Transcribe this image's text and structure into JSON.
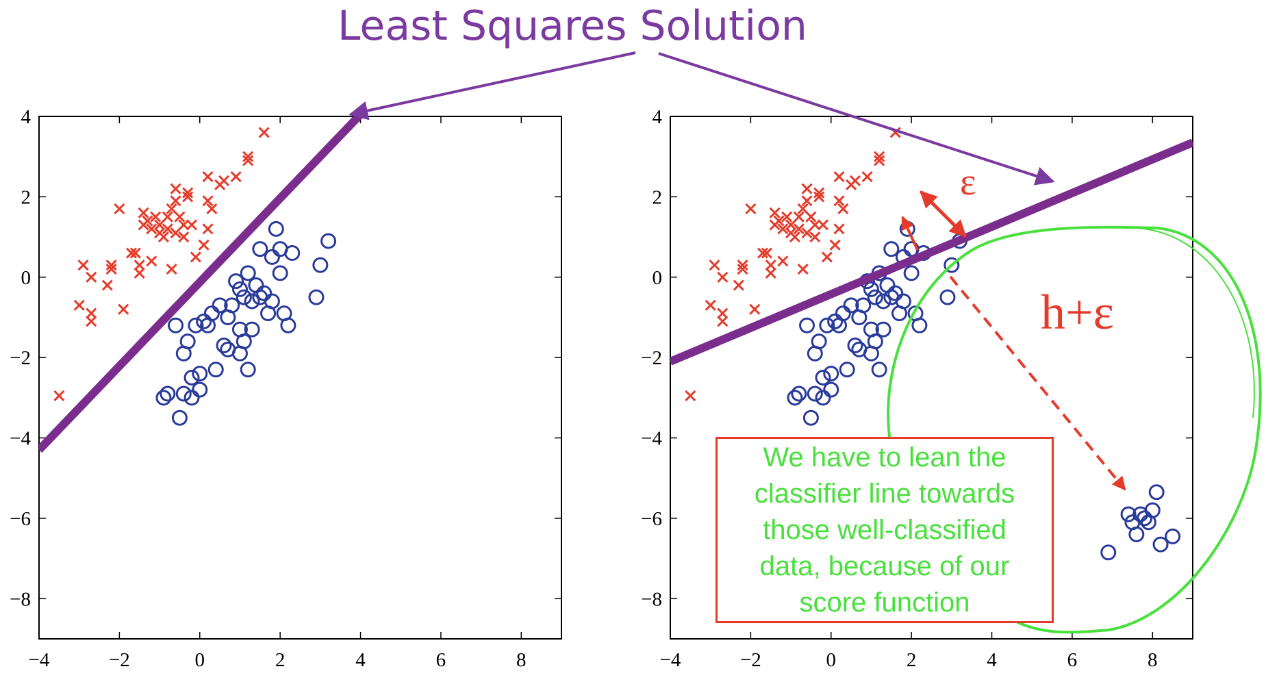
{
  "title": "Least Squares Solution",
  "colors": {
    "title": "#7a3a9f",
    "cross": "#e53b2a",
    "circle": "#2a3a9a",
    "line": "#7b2d8e",
    "green": "#49e03d",
    "red_annot": "#e53b2a"
  },
  "annotations": {
    "epsilon": "ε",
    "h_eps": "h+ε",
    "note": "We have to lean the classifier line towards those well-classified data, because of our score function"
  },
  "chart_data": [
    {
      "type": "scatter",
      "title": "",
      "xlim": [
        -4,
        9
      ],
      "ylim": [
        -9,
        4
      ],
      "xticks": [
        -4,
        -2,
        0,
        2,
        4,
        6,
        8
      ],
      "yticks": [
        4,
        2,
        0,
        -2,
        -4,
        -6,
        -8
      ],
      "xtick_labels": [
        "−4",
        "−2",
        "0",
        "2",
        "4",
        "6",
        "8"
      ],
      "ytick_labels": [
        "4",
        "2",
        "0",
        "−2",
        "−4",
        "−6",
        "−8"
      ],
      "grid": false,
      "series": [
        {
          "marker": "x",
          "color": "#e53b2a",
          "points": [
            [
              -3.5,
              -2.95
            ],
            [
              -3.0,
              -0.7
            ],
            [
              -2.9,
              0.3
            ],
            [
              -2.7,
              -0.9
            ],
            [
              -2.7,
              -1.1
            ],
            [
              -2.7,
              0.0
            ],
            [
              -2.3,
              -0.2
            ],
            [
              -2.2,
              0.3
            ],
            [
              -2.2,
              0.2
            ],
            [
              -2.0,
              1.7
            ],
            [
              -1.9,
              -0.8
            ],
            [
              -1.7,
              0.6
            ],
            [
              -1.6,
              0.6
            ],
            [
              -1.5,
              0.1
            ],
            [
              -1.5,
              0.3
            ],
            [
              -1.4,
              1.3
            ],
            [
              -1.4,
              1.6
            ],
            [
              -1.3,
              1.4
            ],
            [
              -1.2,
              0.4
            ],
            [
              -1.2,
              1.2
            ],
            [
              -1.1,
              1.5
            ],
            [
              -1.0,
              1.1
            ],
            [
              -1.0,
              1.3
            ],
            [
              -0.9,
              1.0
            ],
            [
              -0.8,
              1.2
            ],
            [
              -0.8,
              1.5
            ],
            [
              -0.7,
              0.2
            ],
            [
              -0.7,
              1.7
            ],
            [
              -0.6,
              1.9
            ],
            [
              -0.6,
              2.2
            ],
            [
              -0.6,
              1.1
            ],
            [
              -0.5,
              1.5
            ],
            [
              -0.4,
              1.0
            ],
            [
              -0.4,
              1.3
            ],
            [
              -0.3,
              2.0
            ],
            [
              -0.3,
              2.1
            ],
            [
              -0.2,
              1.3
            ],
            [
              -0.1,
              0.5
            ],
            [
              0.1,
              0.8
            ],
            [
              0.2,
              1.2
            ],
            [
              0.2,
              1.9
            ],
            [
              0.2,
              2.5
            ],
            [
              0.3,
              1.7
            ],
            [
              0.5,
              2.3
            ],
            [
              0.6,
              2.4
            ],
            [
              0.9,
              2.5
            ],
            [
              1.2,
              2.9
            ],
            [
              1.2,
              3.0
            ],
            [
              1.6,
              3.6
            ]
          ]
        },
        {
          "marker": "o",
          "color": "#2a3a9a",
          "points": [
            [
              -0.9,
              -3.0
            ],
            [
              -0.8,
              -2.9
            ],
            [
              -0.6,
              -1.2
            ],
            [
              -0.5,
              -3.5
            ],
            [
              -0.4,
              -2.9
            ],
            [
              -0.4,
              -1.9
            ],
            [
              -0.3,
              -1.6
            ],
            [
              -0.2,
              -2.5
            ],
            [
              -0.2,
              -3.0
            ],
            [
              -0.1,
              -1.2
            ],
            [
              0.0,
              -2.4
            ],
            [
              0.0,
              -2.8
            ],
            [
              0.1,
              -1.1
            ],
            [
              0.2,
              -1.2
            ],
            [
              0.3,
              -0.9
            ],
            [
              0.4,
              -2.3
            ],
            [
              0.5,
              -0.7
            ],
            [
              0.6,
              -1.7
            ],
            [
              0.7,
              -1.0
            ],
            [
              0.7,
              -1.8
            ],
            [
              0.8,
              -0.7
            ],
            [
              0.9,
              -0.1
            ],
            [
              1.0,
              -0.3
            ],
            [
              1.0,
              -1.3
            ],
            [
              1.0,
              -1.9
            ],
            [
              1.1,
              -0.5
            ],
            [
              1.1,
              -1.6
            ],
            [
              1.2,
              0.1
            ],
            [
              1.2,
              -2.3
            ],
            [
              1.3,
              -0.6
            ],
            [
              1.3,
              -1.3
            ],
            [
              1.4,
              -0.2
            ],
            [
              1.5,
              0.7
            ],
            [
              1.5,
              -0.5
            ],
            [
              1.6,
              -0.4
            ],
            [
              1.7,
              -0.9
            ],
            [
              1.8,
              -0.6
            ],
            [
              1.8,
              0.5
            ],
            [
              1.9,
              1.2
            ],
            [
              2.0,
              0.7
            ],
            [
              2.0,
              0.1
            ],
            [
              2.1,
              -0.9
            ],
            [
              2.2,
              -1.2
            ],
            [
              2.3,
              0.6
            ],
            [
              2.9,
              -0.5
            ],
            [
              3.0,
              0.3
            ],
            [
              3.2,
              0.9
            ]
          ]
        }
      ],
      "fit_line": [
        [
          -4,
          -4.3
        ],
        [
          4,
          4.05
        ]
      ]
    },
    {
      "type": "scatter",
      "title": "",
      "xlim": [
        -4,
        9
      ],
      "ylim": [
        -9,
        4
      ],
      "xticks": [
        -4,
        -2,
        0,
        2,
        4,
        6,
        8
      ],
      "yticks": [
        4,
        2,
        0,
        -2,
        -4,
        -6,
        -8
      ],
      "xtick_labels": [
        "−4",
        "−2",
        "0",
        "2",
        "4",
        "6",
        "8"
      ],
      "ytick_labels": [
        "4",
        "2",
        "0",
        "−2",
        "−4",
        "−6",
        "−8"
      ],
      "grid": false,
      "series": [
        {
          "marker": "x",
          "color": "#e53b2a",
          "points": [
            [
              -3.5,
              -2.95
            ],
            [
              -3.0,
              -0.7
            ],
            [
              -2.9,
              0.3
            ],
            [
              -2.7,
              -0.9
            ],
            [
              -2.7,
              -1.1
            ],
            [
              -2.7,
              0.0
            ],
            [
              -2.3,
              -0.2
            ],
            [
              -2.2,
              0.3
            ],
            [
              -2.2,
              0.2
            ],
            [
              -2.0,
              1.7
            ],
            [
              -1.9,
              -0.8
            ],
            [
              -1.7,
              0.6
            ],
            [
              -1.6,
              0.6
            ],
            [
              -1.5,
              0.1
            ],
            [
              -1.5,
              0.3
            ],
            [
              -1.4,
              1.3
            ],
            [
              -1.4,
              1.6
            ],
            [
              -1.3,
              1.4
            ],
            [
              -1.2,
              0.4
            ],
            [
              -1.2,
              1.2
            ],
            [
              -1.1,
              1.5
            ],
            [
              -1.0,
              1.1
            ],
            [
              -1.0,
              1.3
            ],
            [
              -0.9,
              1.0
            ],
            [
              -0.8,
              1.2
            ],
            [
              -0.8,
              1.5
            ],
            [
              -0.7,
              0.2
            ],
            [
              -0.7,
              1.7
            ],
            [
              -0.6,
              1.9
            ],
            [
              -0.6,
              2.2
            ],
            [
              -0.6,
              1.1
            ],
            [
              -0.5,
              1.5
            ],
            [
              -0.4,
              1.0
            ],
            [
              -0.4,
              1.3
            ],
            [
              -0.3,
              2.0
            ],
            [
              -0.3,
              2.1
            ],
            [
              -0.2,
              1.3
            ],
            [
              -0.1,
              0.5
            ],
            [
              0.1,
              0.8
            ],
            [
              0.2,
              1.2
            ],
            [
              0.2,
              1.9
            ],
            [
              0.2,
              2.5
            ],
            [
              0.3,
              1.7
            ],
            [
              0.5,
              2.3
            ],
            [
              0.6,
              2.4
            ],
            [
              0.9,
              2.5
            ],
            [
              1.2,
              2.9
            ],
            [
              1.2,
              3.0
            ],
            [
              1.6,
              3.6
            ]
          ]
        },
        {
          "marker": "o",
          "color": "#2a3a9a",
          "points": [
            [
              -0.9,
              -3.0
            ],
            [
              -0.8,
              -2.9
            ],
            [
              -0.6,
              -1.2
            ],
            [
              -0.5,
              -3.5
            ],
            [
              -0.4,
              -2.9
            ],
            [
              -0.4,
              -1.9
            ],
            [
              -0.3,
              -1.6
            ],
            [
              -0.2,
              -2.5
            ],
            [
              -0.2,
              -3.0
            ],
            [
              -0.1,
              -1.2
            ],
            [
              0.0,
              -2.4
            ],
            [
              0.0,
              -2.8
            ],
            [
              0.1,
              -1.1
            ],
            [
              0.2,
              -1.2
            ],
            [
              0.3,
              -0.9
            ],
            [
              0.4,
              -2.3
            ],
            [
              0.5,
              -0.7
            ],
            [
              0.6,
              -1.7
            ],
            [
              0.7,
              -1.0
            ],
            [
              0.7,
              -1.8
            ],
            [
              0.8,
              -0.7
            ],
            [
              0.9,
              -0.1
            ],
            [
              1.0,
              -0.3
            ],
            [
              1.0,
              -1.3
            ],
            [
              1.0,
              -1.9
            ],
            [
              1.1,
              -0.5
            ],
            [
              1.1,
              -1.6
            ],
            [
              1.2,
              0.1
            ],
            [
              1.2,
              -2.3
            ],
            [
              1.3,
              -0.6
            ],
            [
              1.3,
              -1.3
            ],
            [
              1.4,
              -0.2
            ],
            [
              1.5,
              0.7
            ],
            [
              1.5,
              -0.5
            ],
            [
              1.6,
              -0.4
            ],
            [
              1.7,
              -0.9
            ],
            [
              1.8,
              -0.6
            ],
            [
              1.8,
              0.5
            ],
            [
              1.9,
              1.2
            ],
            [
              2.0,
              0.7
            ],
            [
              2.0,
              0.1
            ],
            [
              2.1,
              -0.9
            ],
            [
              2.2,
              -1.2
            ],
            [
              2.3,
              0.6
            ],
            [
              2.9,
              -0.5
            ],
            [
              3.0,
              0.3
            ],
            [
              3.2,
              0.9
            ],
            [
              6.9,
              -6.85
            ],
            [
              7.4,
              -5.9
            ],
            [
              7.5,
              -6.1
            ],
            [
              7.6,
              -6.4
            ],
            [
              7.7,
              -5.9
            ],
            [
              7.8,
              -6.0
            ],
            [
              7.9,
              -6.1
            ],
            [
              8.0,
              -5.8
            ],
            [
              8.1,
              -5.35
            ],
            [
              8.2,
              -6.65
            ],
            [
              8.5,
              -6.45
            ]
          ]
        }
      ],
      "fit_line": [
        [
          -4,
          -2.1
        ],
        [
          9,
          3.35
        ]
      ]
    }
  ]
}
